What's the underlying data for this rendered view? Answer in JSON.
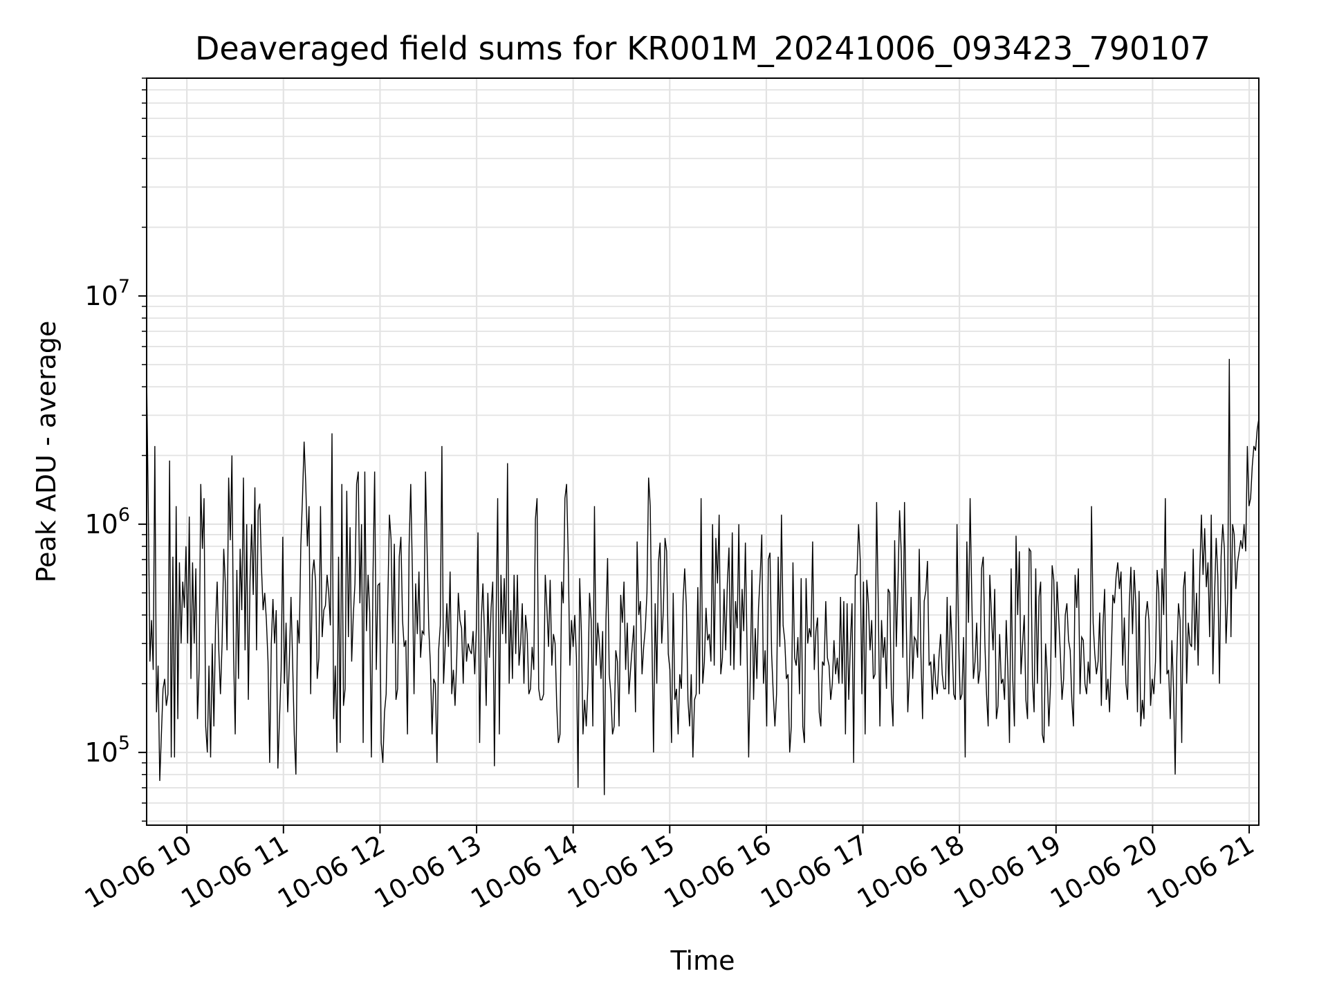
{
  "chart_data": {
    "type": "line",
    "title": "Deaveraged field sums for KR001M_20241006_093423_790107",
    "xlabel": "Time",
    "ylabel": "Peak ADU - average",
    "xlim": [
      "2024-10-06 09:35",
      "2024-10-06 21:06"
    ],
    "ylim": [
      48000,
      90000000
    ],
    "yscale": "log",
    "grid": true,
    "line_color": "#000000",
    "x_tick_labels": [
      "10-06 10",
      "10-06 11",
      "10-06 12",
      "10-06 13",
      "10-06 14",
      "10-06 15",
      "10-06 16",
      "10-06 17",
      "10-06 18",
      "10-06 19",
      "10-06 20",
      "10-06 21"
    ],
    "y_tick_labels": [
      {
        "base": "10",
        "exp": "5",
        "value": 100000
      },
      {
        "base": "10",
        "exp": "6",
        "value": 1000000
      },
      {
        "base": "10",
        "exp": "7",
        "value": 10000000
      }
    ],
    "series": [
      {
        "x_start": "2024-10-06 09:35",
        "x_end": "2024-10-06 21:06",
        "values": [
          4500000,
          1200000,
          250000,
          380000,
          230000,
          2200000,
          150000,
          240000,
          75000,
          120000,
          190000,
          210000,
          160000,
          180000,
          1900000,
          95000,
          720000,
          95000,
          1200000,
          140000,
          680000,
          300000,
          560000,
          430000,
          800000,
          300000,
          1080000,
          210000,
          680000,
          300000,
          640000,
          140000,
          230000,
          1500000,
          780000,
          1300000,
          130000,
          100000,
          240000,
          95000,
          300000,
          130000,
          360000,
          560000,
          280000,
          180000,
          300000,
          780000,
          550000,
          280000,
          1600000,
          850000,
          2000000,
          270000,
          120000,
          630000,
          210000,
          780000,
          420000,
          1600000,
          280000,
          1000000,
          170000,
          560000,
          1000000,
          490000,
          1450000,
          280000,
          1150000,
          1230000,
          650000,
          420000,
          500000,
          380000,
          250000,
          90000,
          300000,
          470000,
          300000,
          420000,
          85000,
          140000,
          230000,
          880000,
          200000,
          370000,
          150000,
          250000,
          480000,
          250000,
          120000,
          80000,
          380000,
          300000,
          810000,
          1300000,
          2300000,
          1500000,
          800000,
          1200000,
          180000,
          600000,
          700000,
          560000,
          210000,
          260000,
          1200000,
          320000,
          420000,
          440000,
          600000,
          500000,
          360000,
          2500000,
          140000,
          240000,
          100000,
          720000,
          110000,
          1500000,
          160000,
          190000,
          1400000,
          320000,
          970000,
          250000,
          400000,
          550000,
          1500000,
          1700000,
          450000,
          1000000,
          110000,
          1700000,
          340000,
          600000,
          410000,
          95000,
          600000,
          1700000,
          230000,
          540000,
          550000,
          110000,
          90000,
          150000,
          180000,
          450000,
          1100000,
          860000,
          300000,
          820000,
          170000,
          190000,
          720000,
          880000,
          380000,
          290000,
          310000,
          120000,
          800000,
          1500000,
          620000,
          180000,
          550000,
          330000,
          620000,
          260000,
          340000,
          330000,
          1700000,
          750000,
          350000,
          240000,
          120000,
          210000,
          200000,
          90000,
          280000,
          360000,
          2200000,
          200000,
          290000,
          450000,
          290000,
          620000,
          180000,
          230000,
          160000,
          250000,
          500000,
          380000,
          350000,
          200000,
          420000,
          250000,
          300000,
          280000,
          270000,
          340000,
          220000,
          350000,
          920000,
          110000,
          380000,
          550000,
          320000,
          160000,
          500000,
          260000,
          430000,
          560000,
          87000,
          370000,
          1300000,
          120000,
          600000,
          330000,
          580000,
          300000,
          1850000,
          200000,
          420000,
          210000,
          600000,
          270000,
          600000,
          240000,
          300000,
          450000,
          200000,
          400000,
          330000,
          180000,
          190000,
          290000,
          230000,
          1050000,
          1300000,
          190000,
          170000,
          170000,
          180000,
          600000,
          430000,
          290000,
          570000,
          240000,
          330000,
          300000,
          160000,
          110000,
          120000,
          560000,
          450000,
          1300000,
          1500000,
          730000,
          240000,
          380000,
          290000,
          400000,
          260000,
          70000,
          580000,
          340000,
          120000,
          170000,
          130000,
          200000,
          500000,
          380000,
          130000,
          1200000,
          240000,
          370000,
          300000,
          210000,
          340000,
          65000,
          380000,
          710000,
          220000,
          180000,
          120000,
          130000,
          280000,
          250000,
          130000,
          490000,
          370000,
          560000,
          230000,
          370000,
          180000,
          230000,
          290000,
          360000,
          150000,
          840000,
          400000,
          460000,
          220000,
          290000,
          350000,
          500000,
          1600000,
          1200000,
          330000,
          100000,
          450000,
          200000,
          680000,
          830000,
          300000,
          420000,
          870000,
          760000,
          270000,
          230000,
          110000,
          500000,
          170000,
          190000,
          120000,
          220000,
          190000,
          460000,
          640000,
          440000,
          170000,
          130000,
          220000,
          95000,
          170000,
          180000,
          530000,
          180000,
          1300000,
          200000,
          250000,
          430000,
          310000,
          330000,
          250000,
          1000000,
          240000,
          870000,
          550000,
          1100000,
          220000,
          260000,
          520000,
          280000,
          550000,
          790000,
          240000,
          920000,
          230000,
          460000,
          350000,
          1000000,
          240000,
          520000,
          340000,
          830000,
          290000,
          95000,
          220000,
          630000,
          170000,
          350000,
          210000,
          430000,
          590000,
          900000,
          200000,
          280000,
          130000,
          700000,
          750000,
          270000,
          180000,
          130000,
          180000,
          720000,
          290000,
          1100000,
          360000,
          310000,
          210000,
          220000,
          100000,
          130000,
          680000,
          260000,
          240000,
          320000,
          180000,
          580000,
          130000,
          110000,
          580000,
          300000,
          350000,
          320000,
          840000,
          230000,
          340000,
          390000,
          150000,
          130000,
          250000,
          240000,
          460000,
          260000,
          240000,
          170000,
          200000,
          310000,
          220000,
          260000,
          200000,
          480000,
          200000,
          460000,
          120000,
          450000,
          170000,
          300000,
          450000,
          90000,
          600000,
          600000,
          1000000,
          700000,
          180000,
          560000,
          120000,
          570000,
          450000,
          280000,
          380000,
          210000,
          220000,
          1250000,
          450000,
          130000,
          380000,
          260000,
          320000,
          190000,
          520000,
          500000,
          180000,
          130000,
          850000,
          290000,
          540000,
          1150000,
          760000,
          260000,
          1250000,
          400000,
          150000,
          220000,
          480000,
          210000,
          320000,
          310000,
          260000,
          780000,
          270000,
          140000,
          460000,
          510000,
          690000,
          240000,
          250000,
          170000,
          270000,
          200000,
          180000,
          260000,
          330000,
          220000,
          190000,
          190000,
          480000,
          180000,
          440000,
          300000,
          180000,
          170000,
          1000000,
          300000,
          170000,
          180000,
          320000,
          95000,
          840000,
          370000,
          1300000,
          480000,
          210000,
          250000,
          370000,
          200000,
          230000,
          640000,
          720000,
          300000,
          180000,
          130000,
          600000,
          400000,
          280000,
          520000,
          140000,
          160000,
          330000,
          200000,
          210000,
          170000,
          380000,
          230000,
          110000,
          640000,
          210000,
          130000,
          890000,
          400000,
          760000,
          220000,
          300000,
          400000,
          170000,
          140000,
          780000,
          760000,
          210000,
          150000,
          640000,
          200000,
          480000,
          560000,
          120000,
          110000,
          300000,
          220000,
          130000,
          200000,
          660000,
          570000,
          260000,
          560000,
          390000,
          270000,
          170000,
          210000,
          400000,
          450000,
          310000,
          280000,
          170000,
          130000,
          600000,
          430000,
          640000,
          180000,
          320000,
          310000,
          200000,
          180000,
          250000,
          200000,
          1200000,
          370000,
          270000,
          220000,
          250000,
          410000,
          160000,
          360000,
          520000,
          170000,
          210000,
          150000,
          260000,
          490000,
          450000,
          590000,
          680000,
          520000,
          620000,
          240000,
          390000,
          200000,
          170000,
          440000,
          650000,
          330000,
          630000,
          450000,
          150000,
          510000,
          130000,
          170000,
          140000,
          390000,
          460000,
          380000,
          160000,
          210000,
          180000,
          250000,
          630000,
          500000,
          200000,
          640000,
          400000,
          1300000,
          220000,
          230000,
          140000,
          310000,
          190000,
          80000,
          260000,
          450000,
          380000,
          110000,
          520000,
          620000,
          200000,
          370000,
          300000,
          290000,
          780000,
          280000,
          500000,
          240000,
          620000,
          1100000,
          600000,
          960000,
          530000,
          680000,
          320000,
          1100000,
          220000,
          480000,
          870000,
          590000,
          200000,
          720000,
          1000000,
          780000,
          300000,
          470000,
          5300000,
          320000,
          1000000,
          900000,
          520000,
          680000,
          760000,
          850000,
          780000,
          1000000,
          760000,
          2200000,
          1200000,
          1300000,
          1800000,
          2200000,
          2100000,
          2600000,
          2900000
        ]
      }
    ]
  }
}
